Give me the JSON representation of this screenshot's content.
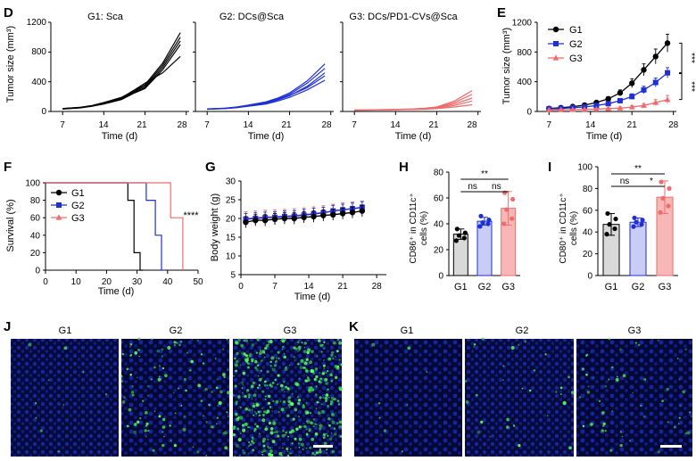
{
  "panel_letters": {
    "D": "D",
    "E": "E",
    "F": "F",
    "G": "G",
    "H": "H",
    "I": "I",
    "J": "J",
    "K": "K"
  },
  "colors": {
    "G1": "#000000",
    "G2": "#1f2fd6",
    "G3": "#f06b6b",
    "bar_G1": "#d9d9d9",
    "bar_G2": "#c9cdf5",
    "bar_G3": "#f7b7b7"
  },
  "panel_d": {
    "titles": [
      "G1: Sca",
      "G2: DCs@Sca",
      "G3: DCs/PD1-CVs@Sca"
    ],
    "ylabel": "Tumor size (mm³)",
    "xlabel": "Time (d)",
    "x_ticks": [
      "7",
      "14",
      "21",
      "28"
    ],
    "y_ticks": [
      "0",
      "400",
      "800",
      "1200"
    ]
  },
  "panel_j": {
    "labels": [
      "G1",
      "G2",
      "G3"
    ]
  },
  "panel_k": {
    "labels": [
      "G1",
      "G2",
      "G3"
    ]
  },
  "chart_data": [
    {
      "panel": "D",
      "type": "line",
      "title": "G1: Sca",
      "xlabel": "Time (d)",
      "ylabel": "Tumor size (mm³)",
      "xlim": [
        5,
        28.5
      ],
      "ylim": [
        0,
        1200
      ],
      "x": [
        7,
        10,
        12,
        14,
        17,
        19,
        21,
        24,
        27
      ],
      "series": [
        {
          "values": [
            40,
            55,
            80,
            120,
            190,
            270,
            360,
            650,
            1060
          ]
        },
        {
          "values": [
            35,
            50,
            75,
            115,
            180,
            260,
            340,
            620,
            1000
          ]
        },
        {
          "values": [
            38,
            52,
            72,
            110,
            170,
            250,
            320,
            590,
            950
          ]
        },
        {
          "values": [
            33,
            48,
            70,
            100,
            160,
            240,
            310,
            560,
            900
          ]
        },
        {
          "values": [
            40,
            55,
            78,
            118,
            185,
            280,
            380,
            520,
            740
          ]
        }
      ]
    },
    {
      "panel": "D",
      "type": "line",
      "title": "G2: DCs@Sca",
      "xlabel": "Time (d)",
      "xlim": [
        5,
        28.5
      ],
      "ylim": [
        0,
        1200
      ],
      "x": [
        7,
        10,
        12,
        14,
        17,
        19,
        21,
        24,
        27
      ],
      "series": [
        {
          "values": [
            35,
            45,
            60,
            85,
            130,
            180,
            250,
            410,
            640
          ]
        },
        {
          "values": [
            32,
            42,
            56,
            80,
            120,
            170,
            230,
            380,
            580
          ]
        },
        {
          "values": [
            30,
            40,
            52,
            75,
            110,
            155,
            210,
            340,
            520
          ]
        },
        {
          "values": [
            33,
            43,
            55,
            78,
            115,
            160,
            215,
            320,
            480
          ]
        },
        {
          "values": [
            30,
            38,
            50,
            70,
            100,
            140,
            190,
            290,
            420
          ]
        }
      ]
    },
    {
      "panel": "D",
      "type": "line",
      "title": "G3: DCs/PD1-CVs@Sca",
      "xlabel": "Time (d)",
      "xlim": [
        5,
        28.5
      ],
      "ylim": [
        0,
        1200
      ],
      "x": [
        7,
        10,
        12,
        14,
        17,
        19,
        21,
        24,
        27
      ],
      "series": [
        {
          "values": [
            20,
            22,
            25,
            28,
            35,
            45,
            60,
            140,
            280
          ]
        },
        {
          "values": [
            18,
            20,
            23,
            27,
            33,
            42,
            55,
            120,
            230
          ]
        },
        {
          "values": [
            18,
            20,
            22,
            25,
            30,
            38,
            50,
            100,
            180
          ]
        },
        {
          "values": [
            17,
            19,
            21,
            24,
            28,
            34,
            45,
            80,
            140
          ]
        },
        {
          "values": [
            16,
            18,
            20,
            23,
            26,
            30,
            38,
            60,
            90
          ]
        }
      ]
    },
    {
      "panel": "E",
      "type": "line",
      "xlabel": "Time (d)",
      "ylabel": "Tumor size (mm³)",
      "xlim": [
        5,
        28.5
      ],
      "ylim": [
        0,
        1200
      ],
      "x_ticks": [
        "7",
        "14",
        "21",
        "28"
      ],
      "y_ticks": [
        "0",
        "400",
        "800",
        "1200"
      ],
      "x": [
        7,
        9,
        11,
        13,
        15,
        17,
        19,
        21,
        23,
        25,
        27
      ],
      "series": [
        {
          "name": "G1",
          "values": [
            40,
            50,
            65,
            85,
            120,
            170,
            250,
            380,
            560,
            740,
            920
          ],
          "err": [
            8,
            10,
            12,
            15,
            20,
            28,
            40,
            60,
            80,
            100,
            120
          ]
        },
        {
          "name": "G2",
          "values": [
            35,
            40,
            50,
            60,
            80,
            105,
            145,
            200,
            290,
            390,
            520
          ],
          "err": [
            6,
            8,
            10,
            12,
            15,
            20,
            28,
            38,
            50,
            60,
            70
          ]
        },
        {
          "name": "G3",
          "values": [
            20,
            22,
            25,
            28,
            32,
            38,
            45,
            60,
            80,
            120,
            160
          ],
          "err": [
            5,
            6,
            6,
            8,
            10,
            12,
            15,
            20,
            28,
            40,
            55
          ]
        }
      ],
      "significance": [
        "***",
        "***"
      ]
    },
    {
      "panel": "F",
      "type": "line",
      "xlabel": "Time (d)",
      "ylabel": "Survival (%)",
      "xlim": [
        0,
        50
      ],
      "ylim": [
        0,
        100
      ],
      "x_ticks": [
        "0",
        "10",
        "20",
        "30",
        "40",
        "50"
      ],
      "y_ticks": [
        "0",
        "20",
        "40",
        "60",
        "80",
        "100"
      ],
      "series": [
        {
          "name": "G1",
          "x": [
            0,
            27,
            27,
            29,
            29,
            31,
            31,
            32
          ],
          "values": [
            100,
            100,
            80,
            80,
            20,
            20,
            0,
            0
          ]
        },
        {
          "name": "G2",
          "x": [
            0,
            33,
            33,
            36,
            36,
            38,
            38,
            39
          ],
          "values": [
            100,
            100,
            80,
            80,
            40,
            40,
            0,
            0
          ]
        },
        {
          "name": "G3",
          "x": [
            0,
            41,
            41,
            45,
            45
          ],
          "values": [
            100,
            100,
            60,
            60,
            0
          ]
        }
      ],
      "significance": [
        "****"
      ]
    },
    {
      "panel": "G",
      "type": "line",
      "xlabel": "Time (d)",
      "ylabel": "Body weight (g)",
      "xlim": [
        0,
        30
      ],
      "ylim": [
        5,
        30
      ],
      "x_ticks": [
        "0",
        "7",
        "14",
        "21",
        "28"
      ],
      "y_ticks": [
        "5",
        "10",
        "15",
        "20",
        "25",
        "30"
      ],
      "x": [
        1,
        3,
        5,
        7,
        9,
        11,
        13,
        15,
        17,
        19,
        21,
        23,
        25
      ],
      "series": [
        {
          "name": "G1",
          "values": [
            19,
            19.5,
            19.5,
            19.8,
            20,
            20,
            20.3,
            20.5,
            20.8,
            21,
            21.3,
            21.6,
            22
          ],
          "err": 1.5
        },
        {
          "name": "G2",
          "values": [
            19.8,
            20,
            20.2,
            20.3,
            20.5,
            20.6,
            20.9,
            21.2,
            21.5,
            22,
            22.3,
            22.6,
            23
          ],
          "err": 1.5
        },
        {
          "name": "G3",
          "values": [
            20,
            20.2,
            20.4,
            20.5,
            20.6,
            20.8,
            21,
            21.3,
            21.6,
            22,
            22.4,
            22.6,
            22.8
          ],
          "err": 1.8
        }
      ]
    },
    {
      "panel": "H",
      "type": "bar",
      "categories": [
        "G1",
        "G2",
        "G3"
      ],
      "values": [
        32,
        42,
        52
      ],
      "err": [
        4,
        3,
        13
      ],
      "points": [
        [
          27,
          29,
          31,
          33,
          36
        ],
        [
          38,
          40,
          41,
          43,
          46
        ],
        [
          40,
          44,
          51,
          59,
          64
        ]
      ],
      "ylabel": "CD86⁺ in CD11c⁺ cells (%)",
      "ylim": [
        0,
        80
      ],
      "y_ticks": [
        "0",
        "20",
        "40",
        "60",
        "80"
      ],
      "significance": [
        {
          "groups": [
            "G1",
            "G3"
          ],
          "text": "**"
        },
        {
          "groups": [
            "G1",
            "G2"
          ],
          "text": "ns"
        },
        {
          "groups": [
            "G2",
            "G3"
          ],
          "text": "ns"
        }
      ]
    },
    {
      "panel": "I",
      "type": "bar",
      "categories": [
        "G1",
        "G2",
        "G3"
      ],
      "values": [
        47,
        49,
        72
      ],
      "err": [
        10,
        4,
        15
      ],
      "points": [
        [
          38,
          43,
          47,
          52,
          57
        ],
        [
          45,
          47,
          49,
          51,
          53
        ],
        [
          58,
          64,
          71,
          80,
          86
        ]
      ],
      "ylabel": "CD80⁺ in CD11c⁺ cells (%)",
      "ylim": [
        0,
        100
      ],
      "y_ticks": [
        "0",
        "20",
        "40",
        "60",
        "80",
        "100"
      ],
      "significance": [
        {
          "groups": [
            "G1",
            "G3"
          ],
          "text": "**"
        },
        {
          "groups": [
            "G1",
            "G2"
          ],
          "text": "ns"
        },
        {
          "groups": [
            "G2",
            "G3"
          ],
          "text": "*"
        }
      ]
    }
  ]
}
